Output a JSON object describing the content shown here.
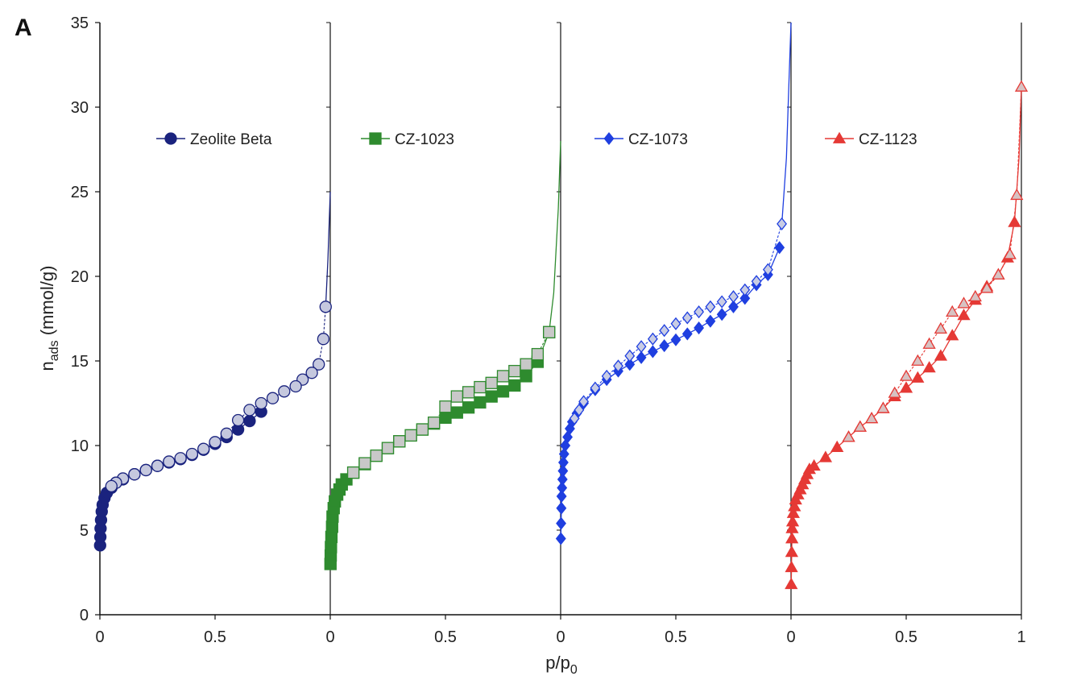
{
  "chart_data": {
    "type": "line",
    "panel_label": "A",
    "xlabel_main": "p/p",
    "xlabel_sub": "0",
    "ylabel_main": "n",
    "ylabel_sub": "ads",
    "ylabel_rest": " (mmol/g)",
    "ylim": [
      0,
      35
    ],
    "yticks": [
      "0",
      "5",
      "10",
      "15",
      "20",
      "25",
      "30",
      "35"
    ],
    "xlim_per_panel": [
      0,
      1
    ],
    "xtick_labels": [
      "0",
      "0.5",
      "0",
      "0.5",
      "0",
      "0.5",
      "0",
      "0.5",
      "1"
    ],
    "grid": false,
    "panels": [
      {
        "name": "Zeolite Beta",
        "color": "#1a237e",
        "open_color": "#c5c8de",
        "marker": "circle",
        "adsorption": {
          "x": [
            0.001,
            0.002,
            0.003,
            0.005,
            0.008,
            0.012,
            0.02,
            0.03,
            0.05,
            0.07,
            0.1,
            0.15,
            0.2,
            0.25,
            0.3,
            0.35,
            0.4,
            0.45,
            0.5,
            0.55,
            0.6,
            0.65,
            0.7
          ],
          "y": [
            4.1,
            4.6,
            5.1,
            5.6,
            6.1,
            6.5,
            6.9,
            7.2,
            7.5,
            7.8,
            8.0,
            8.3,
            8.55,
            8.8,
            9.0,
            9.2,
            9.45,
            9.75,
            10.1,
            10.5,
            10.95,
            11.45,
            12.0
          ]
        },
        "desorption": {
          "x": [
            0.98,
            0.97,
            0.95,
            0.92,
            0.88,
            0.85,
            0.8,
            0.75,
            0.7,
            0.65,
            0.6,
            0.55,
            0.5,
            0.45,
            0.4,
            0.35,
            0.3,
            0.25,
            0.2,
            0.15,
            0.1,
            0.07,
            0.05
          ],
          "y": [
            18.2,
            16.3,
            14.8,
            14.3,
            13.9,
            13.5,
            13.2,
            12.8,
            12.5,
            12.1,
            11.5,
            10.7,
            10.2,
            9.8,
            9.5,
            9.25,
            9.05,
            8.8,
            8.55,
            8.3,
            8.05,
            7.8,
            7.6
          ]
        },
        "tail": {
          "x": [
            0.98,
            0.99,
            1.0
          ],
          "y": [
            18.2,
            21.0,
            25.0
          ]
        }
      },
      {
        "name": "CZ-1023",
        "color": "#2e8b2e",
        "open_color": "#c8c8c8",
        "marker": "square",
        "adsorption": {
          "x": [
            0.001,
            0.002,
            0.003,
            0.005,
            0.008,
            0.01,
            0.015,
            0.02,
            0.03,
            0.04,
            0.05,
            0.07,
            0.1,
            0.15,
            0.2,
            0.25,
            0.3,
            0.35,
            0.4,
            0.45,
            0.5,
            0.55,
            0.6,
            0.65,
            0.7,
            0.75,
            0.8,
            0.85,
            0.9,
            0.95
          ],
          "y": [
            3.0,
            3.5,
            4.0,
            4.6,
            5.2,
            5.8,
            6.3,
            6.7,
            7.1,
            7.4,
            7.7,
            8.0,
            8.4,
            8.9,
            9.4,
            9.85,
            10.25,
            10.6,
            10.95,
            11.3,
            11.65,
            11.95,
            12.25,
            12.55,
            12.9,
            13.2,
            13.55,
            14.1,
            14.95,
            16.7
          ]
        },
        "desorption": {
          "x": [
            0.95,
            0.9,
            0.85,
            0.8,
            0.75,
            0.7,
            0.65,
            0.6,
            0.55,
            0.5,
            0.45,
            0.4,
            0.35,
            0.3,
            0.25,
            0.2,
            0.15,
            0.1
          ],
          "y": [
            16.7,
            15.4,
            14.8,
            14.4,
            14.1,
            13.7,
            13.45,
            13.15,
            12.9,
            12.3,
            11.35,
            10.95,
            10.6,
            10.25,
            9.85,
            9.4,
            8.95,
            8.4
          ]
        },
        "tail": {
          "x": [
            0.95,
            0.97,
            0.99,
            1.0
          ],
          "y": [
            16.7,
            19.0,
            24.0,
            28.0
          ]
        }
      },
      {
        "name": "CZ-1073",
        "color": "#1f3fe0",
        "open_color": "#c8cce4",
        "marker": "diamond",
        "adsorption": {
          "x": [
            0.001,
            0.002,
            0.003,
            0.004,
            0.006,
            0.008,
            0.01,
            0.012,
            0.015,
            0.02,
            0.03,
            0.04,
            0.05,
            0.07,
            0.1,
            0.15,
            0.2,
            0.25,
            0.3,
            0.35,
            0.4,
            0.45,
            0.5,
            0.55,
            0.6,
            0.65,
            0.7,
            0.75,
            0.8,
            0.85,
            0.9,
            0.95
          ],
          "y": [
            4.5,
            5.4,
            6.3,
            7.0,
            7.5,
            8.0,
            8.5,
            9.0,
            9.5,
            10.0,
            10.5,
            11.0,
            11.4,
            11.9,
            12.5,
            13.3,
            13.9,
            14.4,
            14.8,
            15.2,
            15.55,
            15.9,
            16.25,
            16.6,
            16.95,
            17.35,
            17.75,
            18.2,
            18.7,
            19.5,
            20.1,
            21.7
          ]
        },
        "desorption": {
          "x": [
            0.96,
            0.9,
            0.85,
            0.8,
            0.75,
            0.7,
            0.65,
            0.6,
            0.55,
            0.5,
            0.45,
            0.4,
            0.35,
            0.3,
            0.25,
            0.2,
            0.15,
            0.1,
            0.08,
            0.06
          ],
          "y": [
            23.1,
            20.4,
            19.7,
            19.2,
            18.8,
            18.5,
            18.2,
            17.9,
            17.55,
            17.2,
            16.8,
            16.3,
            15.85,
            15.3,
            14.7,
            14.1,
            13.4,
            12.6,
            12.1,
            11.6
          ]
        },
        "tail": {
          "x": [
            0.96,
            0.98,
            0.99,
            1.0
          ],
          "y": [
            23.1,
            27.0,
            31.0,
            35.0
          ]
        }
      },
      {
        "name": "CZ-1123",
        "color": "#e53935",
        "open_color": "#d7c2c2",
        "marker": "triangle",
        "adsorption": {
          "x": [
            0.001,
            0.002,
            0.003,
            0.004,
            0.005,
            0.007,
            0.01,
            0.015,
            0.02,
            0.03,
            0.04,
            0.05,
            0.06,
            0.07,
            0.08,
            0.1,
            0.15,
            0.2,
            0.25,
            0.3,
            0.35,
            0.4,
            0.45,
            0.5,
            0.55,
            0.6,
            0.65,
            0.7,
            0.75,
            0.8,
            0.85,
            0.9,
            0.94,
            0.97
          ],
          "y": [
            1.8,
            2.8,
            3.7,
            4.5,
            5.1,
            5.5,
            6.0,
            6.4,
            6.8,
            7.1,
            7.4,
            7.7,
            8.0,
            8.3,
            8.6,
            8.8,
            9.3,
            9.9,
            10.5,
            11.1,
            11.6,
            12.2,
            12.9,
            13.4,
            14.0,
            14.6,
            15.3,
            16.5,
            17.7,
            18.6,
            19.4,
            20.1,
            21.1,
            23.2
          ]
        },
        "desorption": {
          "x": [
            1.0,
            0.98,
            0.95,
            0.9,
            0.85,
            0.8,
            0.75,
            0.7,
            0.65,
            0.6,
            0.55,
            0.5,
            0.45,
            0.4,
            0.35,
            0.3,
            0.25
          ],
          "y": [
            31.2,
            24.8,
            21.3,
            20.1,
            19.3,
            18.8,
            18.4,
            17.9,
            16.9,
            16.0,
            15.0,
            14.1,
            13.1,
            12.2,
            11.6,
            11.1,
            10.5
          ]
        },
        "tail": {
          "x": [
            0.97,
            0.99,
            1.0
          ],
          "y": [
            23.2,
            27.0,
            31.2
          ]
        }
      }
    ]
  }
}
